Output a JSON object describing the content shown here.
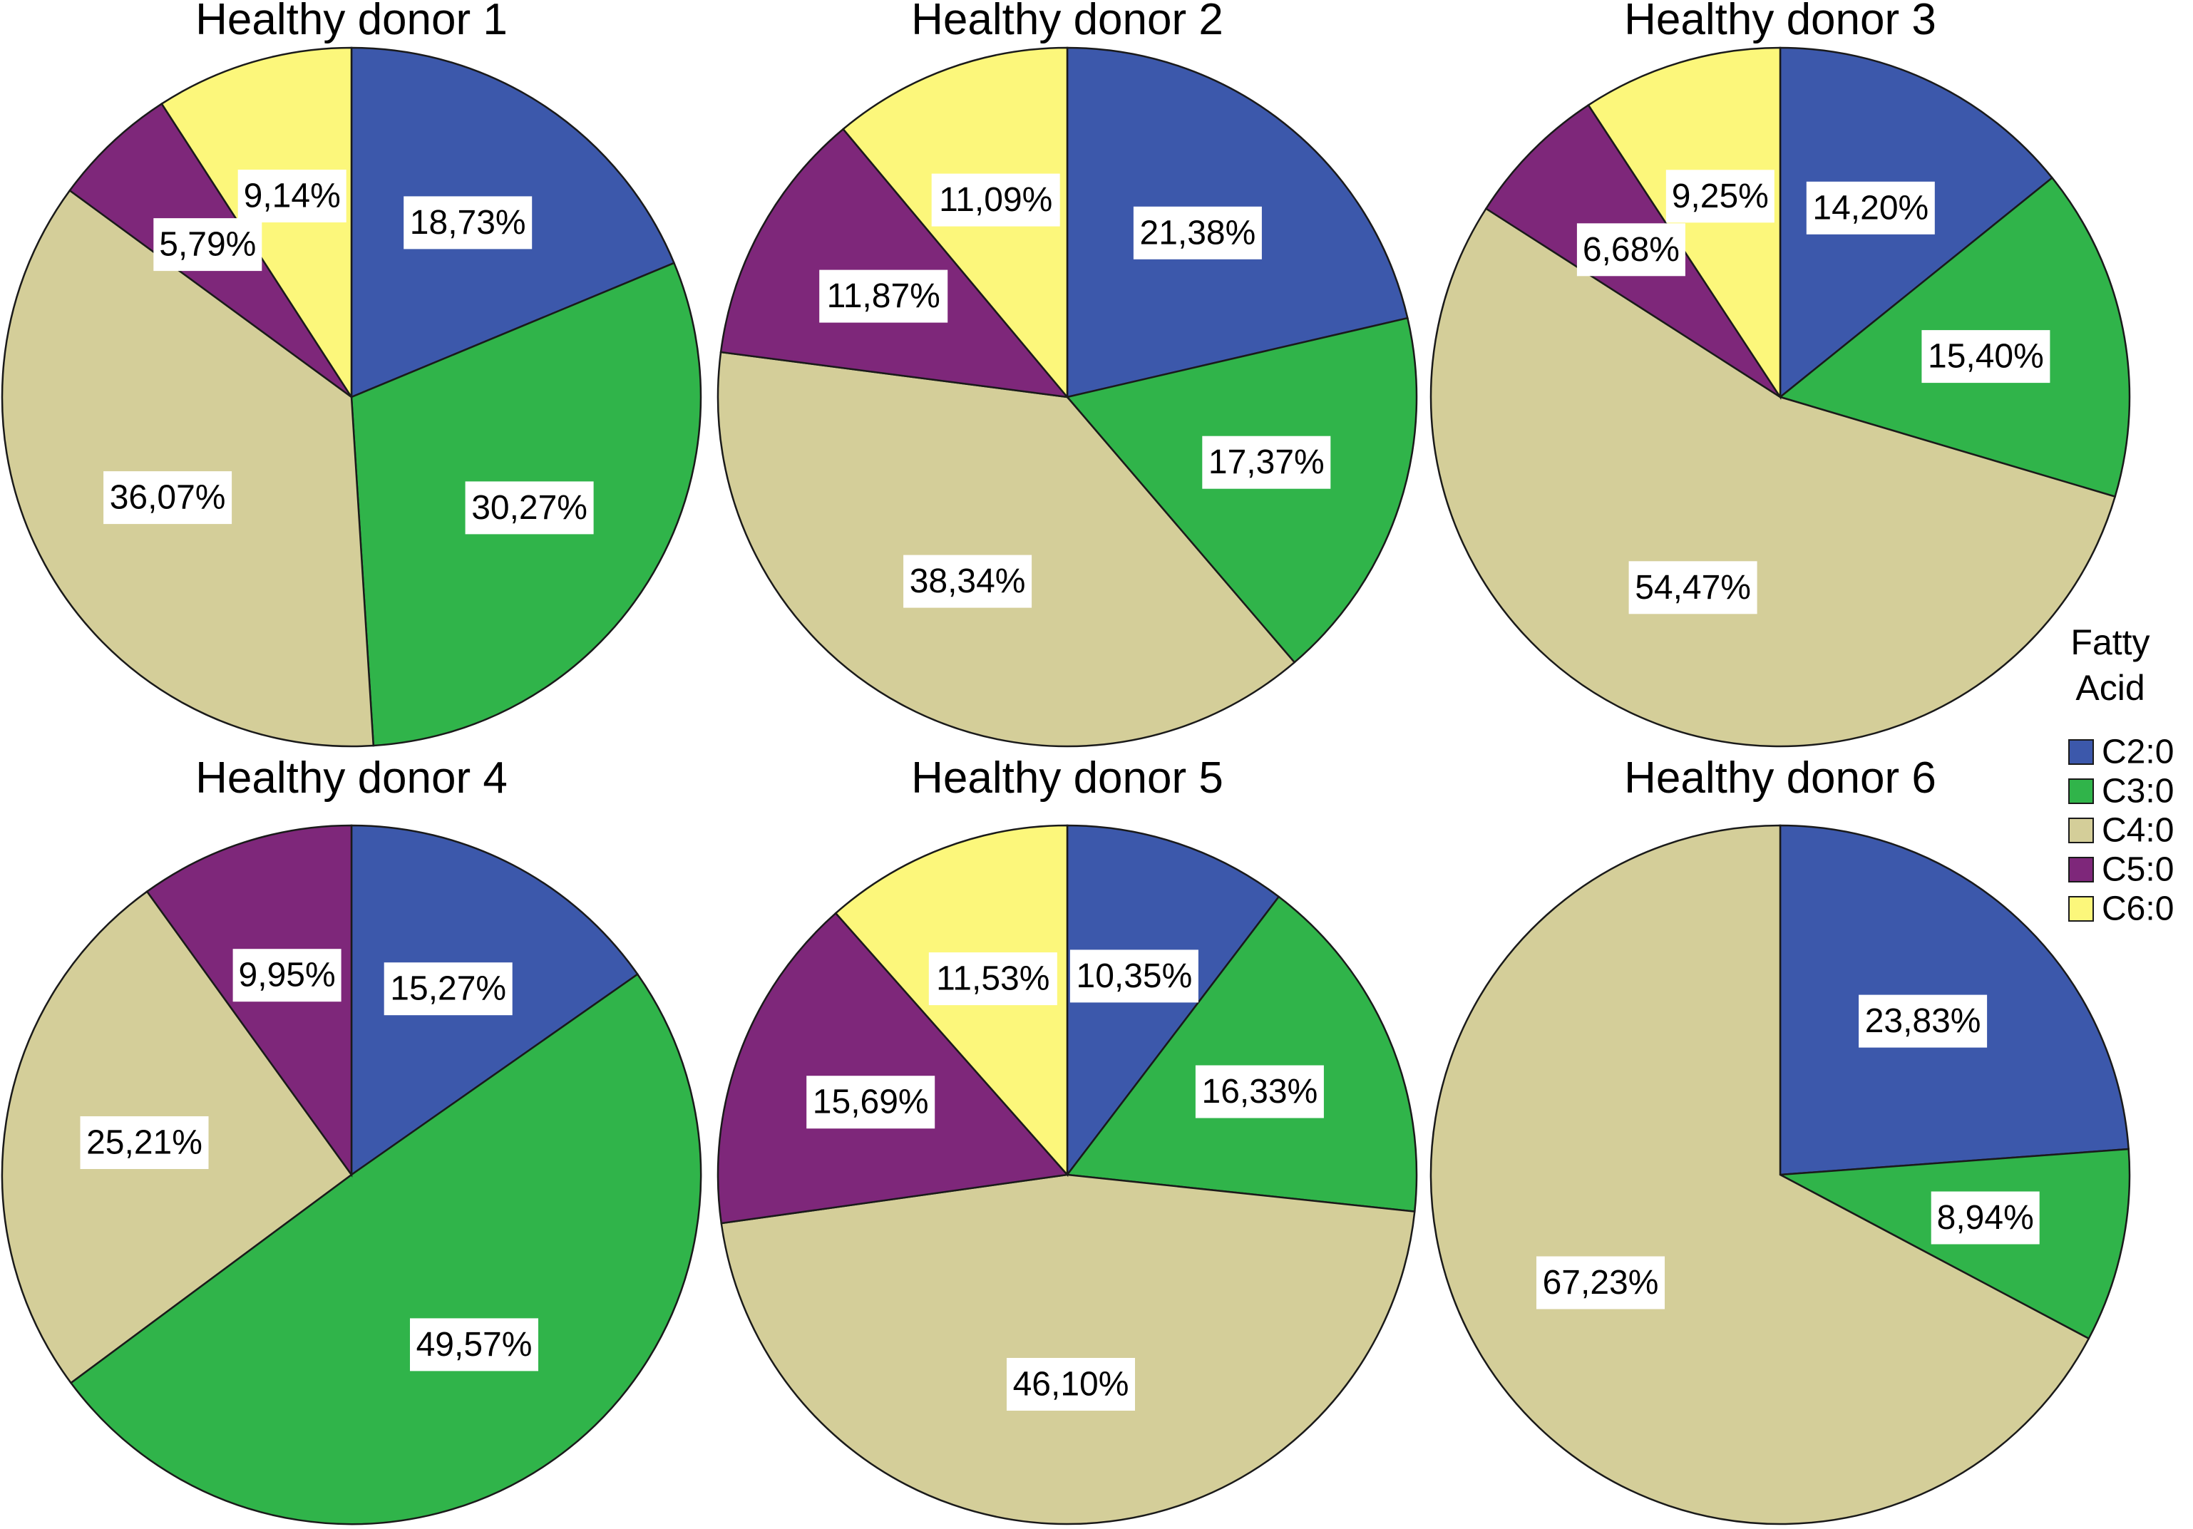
{
  "chart_data": {
    "type": "pie",
    "categories": [
      "C2:0",
      "C3:0",
      "C4:0",
      "C5:0",
      "C6:0"
    ],
    "colors": [
      "#3c58ab",
      "#30b44a",
      "#d4ce99",
      "#7e277a",
      "#fcf77b"
    ],
    "legend": {
      "title_lines": [
        "Fatty",
        "Acid"
      ],
      "entries": [
        "C2:0",
        "C3:0",
        "C4:0",
        "C5:0",
        "C6:0"
      ],
      "position": "right"
    },
    "charts": [
      {
        "title": "Healthy donor 1",
        "values": [
          18.73,
          30.27,
          36.07,
          5.79,
          9.14
        ],
        "labels": [
          "18,73%",
          "30,27%",
          "36,07%",
          "5,79%",
          "9,14%"
        ]
      },
      {
        "title": "Healthy donor 2",
        "values": [
          21.38,
          17.37,
          38.34,
          11.87,
          11.09
        ],
        "labels": [
          "21,38%",
          "17,37%",
          "38,34%",
          "11,87%",
          "11,09%"
        ]
      },
      {
        "title": "Healthy donor 3",
        "values": [
          14.2,
          15.4,
          54.47,
          6.68,
          9.25
        ],
        "labels": [
          "14,20%",
          "15,40%",
          "54,47%",
          "6,68%",
          "9,25%"
        ]
      },
      {
        "title": "Healthy donor 4",
        "values": [
          15.27,
          49.57,
          25.21,
          9.95,
          0
        ],
        "labels": [
          "15,27%",
          "49,57%",
          "25,21%",
          "9,95%",
          ""
        ]
      },
      {
        "title": "Healthy donor 5",
        "values": [
          10.35,
          16.33,
          46.1,
          15.69,
          11.53
        ],
        "labels": [
          "10,35%",
          "16,33%",
          "46,10%",
          "15,69%",
          "11,53%"
        ]
      },
      {
        "title": "Healthy donor 6",
        "values": [
          23.83,
          8.94,
          67.23,
          0,
          0
        ],
        "labels": [
          "23,83%",
          "8,94%",
          "67,23%",
          "",
          ""
        ]
      }
    ]
  }
}
